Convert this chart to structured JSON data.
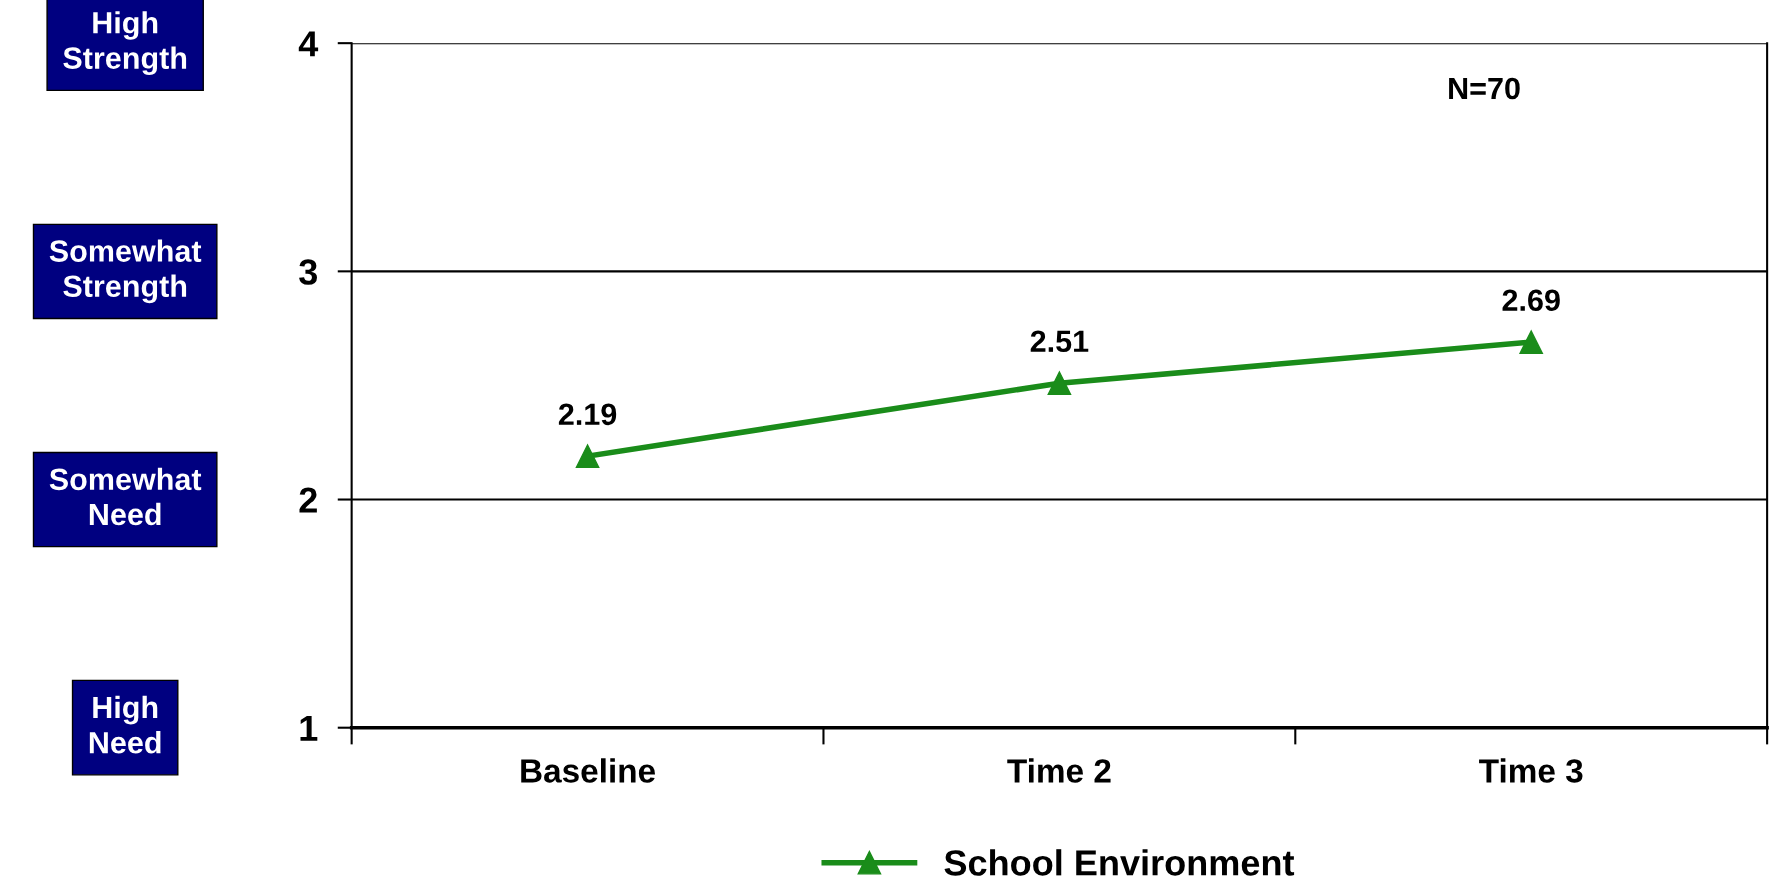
{
  "chart_data": {
    "type": "line",
    "categories": [
      "Baseline",
      "Time 2",
      "Time 3"
    ],
    "series": [
      {
        "name": "School Environment",
        "color": "#1a8c1a",
        "values": [
          2.19,
          2.51,
          2.69
        ]
      }
    ],
    "ylim": [
      1,
      4
    ],
    "yticks": [
      1,
      2,
      3,
      4
    ],
    "grid": "y",
    "marker": "triangle",
    "line_style": "solid",
    "data_labels": true,
    "legend": "bottom",
    "annotations": [
      "N=70",
      "High\nStrength",
      "Somewhat\nStrength",
      "Somewhat\nNeed",
      "High\nNeed"
    ]
  }
}
